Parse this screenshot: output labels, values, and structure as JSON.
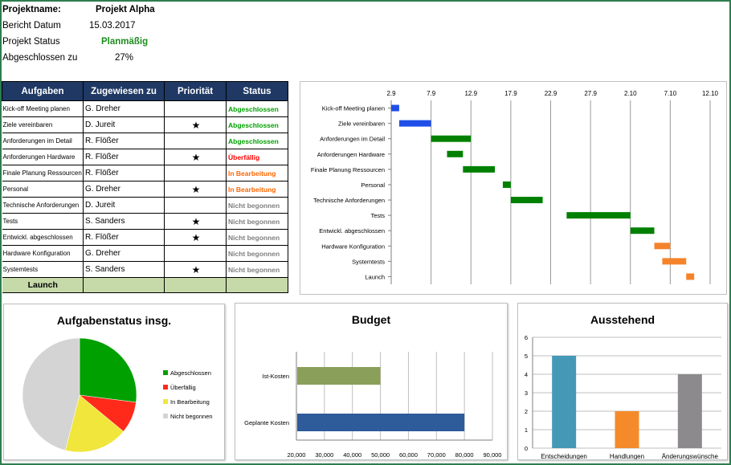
{
  "project": {
    "name_label": "Projektname:",
    "name_value": "Projekt Alpha",
    "date_label": "Bericht Datum",
    "date_value": "15.03.2017",
    "status_label": "Projekt Status",
    "status_value": "Planmäßig",
    "completed_label": "Abgeschlossen zu",
    "completed_value": "27%"
  },
  "table": {
    "headers": [
      "Aufgaben",
      "Zugewiesen zu",
      "Priorität",
      "Status"
    ],
    "rows": [
      {
        "task": "Kick-off Meeting planen",
        "assignee": "G. Dreher",
        "priority": "",
        "status": "Abgeschlossen"
      },
      {
        "task": "Ziele vereinbaren",
        "assignee": "D. Jureit",
        "priority": "★",
        "status": "Abgeschlossen"
      },
      {
        "task": "Anforderungen  im Detail",
        "assignee": "R. Flößer",
        "priority": "",
        "status": "Abgeschlossen"
      },
      {
        "task": "Anforderungen Hardware",
        "assignee": "R. Flößer",
        "priority": "★",
        "status": "Überfällig"
      },
      {
        "task": "Finale Planung Ressourcen",
        "assignee": "R. Flößer",
        "priority": "",
        "status": "In Bearbeitung"
      },
      {
        "task": "Personal",
        "assignee": "G. Dreher",
        "priority": "★",
        "status": "In Bearbeitung"
      },
      {
        "task": "Technische Anforderungen",
        "assignee": "D. Jureit",
        "priority": "",
        "status": "Nicht begonnen"
      },
      {
        "task": "Tests",
        "assignee": "S. Sanders",
        "priority": "★",
        "status": "Nicht begonnen"
      },
      {
        "task": "Entwickl. abgeschlossen",
        "assignee": "R. Flößer",
        "priority": "★",
        "status": "Nicht begonnen"
      },
      {
        "task": "Hardware Konfiguration",
        "assignee": "G. Dreher",
        "priority": "",
        "status": "Nicht begonnen"
      },
      {
        "task": "Systemtests",
        "assignee": "S. Sanders",
        "priority": "★",
        "status": "Nicht begonnen"
      }
    ],
    "launch_label": "Launch"
  },
  "colors": {
    "Abgeschlossen": "#00a000",
    "Überfällig": "#ff0000",
    "In Bearbeitung": "#ff6600",
    "Nicht begonnen": "#7f7f7f",
    "gantt_blue": "#1f4fe8",
    "gantt_green": "#008000",
    "gantt_orange": "#f5832a",
    "pie_green": "#00a000",
    "pie_red": "#ff2a1a",
    "pie_yellow": "#f0e63c",
    "pie_grey": "#d4d4d4",
    "budget_ist": "#8aa05a",
    "budget_plan": "#2e5b9a",
    "pending_1": "#4599b6",
    "pending_2": "#f58a2a",
    "pending_3": "#8c8a8c",
    "table_header": "#1f3864",
    "launch_bg": "#c6d9a8"
  },
  "chart_data": [
    {
      "type": "gantt",
      "x_ticks": [
        "2.9",
        "7.9",
        "12.9",
        "17.9",
        "22.9",
        "27.9",
        "2.10",
        "7.10",
        "12.10"
      ],
      "tasks": [
        {
          "name": "Kick-off Meeting planen",
          "start": "2.9",
          "end": "3.9",
          "status": "blue"
        },
        {
          "name": "Ziele vereinbaren",
          "start": "3.9",
          "end": "7.9",
          "status": "blue"
        },
        {
          "name": "Anforderungen  im Detail",
          "start": "7.9",
          "end": "12.9",
          "status": "green"
        },
        {
          "name": "Anforderungen Hardware",
          "start": "9.9",
          "end": "11.9",
          "status": "green"
        },
        {
          "name": "Finale Planung Ressourcen",
          "start": "11.9",
          "end": "15.9",
          "status": "green"
        },
        {
          "name": "Personal",
          "start": "16.9",
          "end": "17.9",
          "status": "green"
        },
        {
          "name": "Technische Anforderungen",
          "start": "17.9",
          "end": "21.9",
          "status": "green"
        },
        {
          "name": "Tests",
          "start": "24.9",
          "end": "2.10",
          "status": "green"
        },
        {
          "name": "Entwickl. abgeschlossen",
          "start": "2.10",
          "end": "5.10",
          "status": "green"
        },
        {
          "name": "Hardware Konfiguration",
          "start": "5.10",
          "end": "7.10",
          "status": "orange"
        },
        {
          "name": "Systemtests",
          "start": "6.10",
          "end": "9.10",
          "status": "orange"
        },
        {
          "name": "Launch",
          "start": "9.10",
          "end": "10.10",
          "status": "orange"
        }
      ]
    },
    {
      "type": "pie",
      "title": "Aufgabenstatus insg.",
      "categories": [
        "Abgeschlossen",
        "Überfällig",
        "In Bearbeitung",
        "Nicht begonnen"
      ],
      "values": [
        27,
        9,
        18,
        46
      ],
      "legend": "right"
    },
    {
      "type": "bar",
      "orientation": "horizontal",
      "title": "Budget",
      "categories": [
        "Ist-Kosten",
        "Geplante Kosten"
      ],
      "values": [
        50000,
        80000
      ],
      "x_ticks": [
        "20,000",
        "30,000",
        "40,000",
        "50,000",
        "60,000",
        "70,000",
        "80,000",
        "90,000"
      ],
      "xlim": [
        20000,
        90000
      ]
    },
    {
      "type": "bar",
      "title": "Ausstehend",
      "categories": [
        "Entscheidungen",
        "Handlungen",
        "Änderungswünsche"
      ],
      "values": [
        5,
        2,
        4
      ],
      "y_ticks": [
        "0",
        "1",
        "2",
        "3",
        "4",
        "5",
        "6"
      ],
      "ylim": [
        0,
        6
      ]
    }
  ]
}
